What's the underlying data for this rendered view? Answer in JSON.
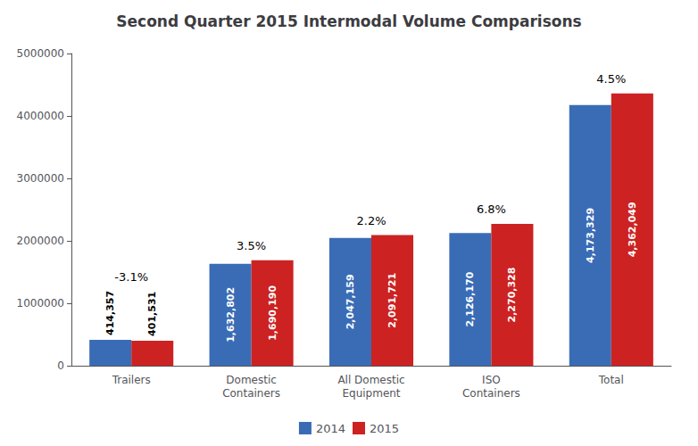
{
  "chart_data": {
    "type": "bar",
    "title": "Second Quarter 2015 Intermodal Volume Comparisons",
    "categories": [
      "Trailers",
      "Domestic\nContainers",
      "All Domestic\nEquipment",
      "ISO\nContainers",
      "Total"
    ],
    "series": [
      {
        "name": "2014",
        "color": "#3A6CB5",
        "values": [
          414357,
          1632802,
          2047159,
          2126170,
          4173329
        ],
        "value_labels": [
          "414,357",
          "1,632,802",
          "2,047,159",
          "2,126,170",
          "4,173,329"
        ]
      },
      {
        "name": "2015",
        "color": "#CC2222",
        "values": [
          401531,
          1690190,
          2091721,
          2270328,
          4362049
        ],
        "value_labels": [
          "401,531",
          "1,690,190",
          "2,091,721",
          "2,270,328",
          "4,362,049"
        ]
      }
    ],
    "annotations": [
      {
        "category": "Trailers",
        "text": "-3.1%"
      },
      {
        "category": "Domestic\nContainers",
        "text": "3.5%"
      },
      {
        "category": "All Domestic\nEquipment",
        "text": "2.2%"
      },
      {
        "category": "ISO\nContainers",
        "text": "6.8%"
      },
      {
        "category": "Total",
        "text": "4.5%"
      }
    ],
    "ylim": [
      0,
      5000000
    ],
    "yticks": [
      0,
      1000000,
      2000000,
      3000000,
      4000000,
      5000000
    ],
    "data_labels": true,
    "legend": "bottom",
    "grid": false
  }
}
